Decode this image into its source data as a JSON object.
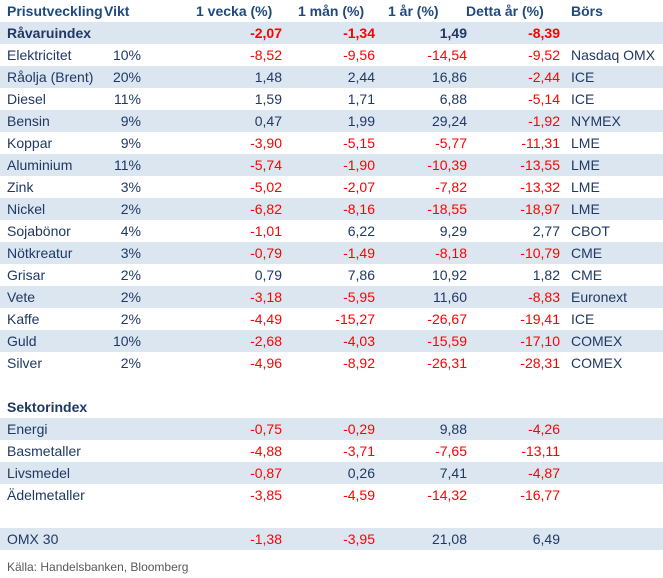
{
  "headers": {
    "name": "Prisutveckling",
    "weight": "Vikt",
    "week": "1 vecka (%)",
    "month": "1 mån (%)",
    "year": "1 år (%)",
    "ytd": "Detta år (%)",
    "exchange": "Börs"
  },
  "index_row": {
    "name": "Råvaruindex",
    "weight": "",
    "week": "-2,07",
    "month": "-1,34",
    "year": "1,49",
    "ytd": "-8,39",
    "exchange": ""
  },
  "commodities": [
    {
      "name": "Elektricitet",
      "weight": "10%",
      "week": "-8,52",
      "month": "-9,56",
      "year": "-14,54",
      "ytd": "-9,52",
      "exchange": "Nasdaq OMX"
    },
    {
      "name": "Råolja (Brent)",
      "weight": "20%",
      "week": "1,48",
      "month": "2,44",
      "year": "16,86",
      "ytd": "-2,44",
      "exchange": "ICE"
    },
    {
      "name": "Diesel",
      "weight": "11%",
      "week": "1,59",
      "month": "1,71",
      "year": "6,88",
      "ytd": "-5,14",
      "exchange": "ICE"
    },
    {
      "name": "Bensin",
      "weight": "9%",
      "week": "0,47",
      "month": "1,99",
      "year": "29,24",
      "ytd": "-1,92",
      "exchange": "NYMEX"
    },
    {
      "name": "Koppar",
      "weight": "9%",
      "week": "-3,90",
      "month": "-5,15",
      "year": "-5,77",
      "ytd": "-11,31",
      "exchange": "LME"
    },
    {
      "name": "Aluminium",
      "weight": "11%",
      "week": "-5,74",
      "month": "-1,90",
      "year": "-10,39",
      "ytd": "-13,55",
      "exchange": "LME"
    },
    {
      "name": "Zink",
      "weight": "3%",
      "week": "-5,02",
      "month": "-2,07",
      "year": "-7,82",
      "ytd": "-13,32",
      "exchange": "LME"
    },
    {
      "name": "Nickel",
      "weight": "2%",
      "week": "-6,82",
      "month": "-8,16",
      "year": "-18,55",
      "ytd": "-18,97",
      "exchange": "LME"
    },
    {
      "name": "Sojabönor",
      "weight": "4%",
      "week": "-1,01",
      "month": "6,22",
      "year": "9,29",
      "ytd": "2,77",
      "exchange": "CBOT"
    },
    {
      "name": "Nötkreatur",
      "weight": "3%",
      "week": "-0,79",
      "month": "-1,49",
      "year": "-8,18",
      "ytd": "-10,79",
      "exchange": "CME"
    },
    {
      "name": "Grisar",
      "weight": "2%",
      "week": "0,79",
      "month": "7,86",
      "year": "10,92",
      "ytd": "1,82",
      "exchange": "CME"
    },
    {
      "name": "Vete",
      "weight": "2%",
      "week": "-3,18",
      "month": "-5,95",
      "year": "11,60",
      "ytd": "-8,83",
      "exchange": "Euronext"
    },
    {
      "name": "Kaffe",
      "weight": "2%",
      "week": "-4,49",
      "month": "-15,27",
      "year": "-26,67",
      "ytd": "-19,41",
      "exchange": "ICE"
    },
    {
      "name": "Guld",
      "weight": "10%",
      "week": "-2,68",
      "month": "-4,03",
      "year": "-15,59",
      "ytd": "-17,10",
      "exchange": "COMEX"
    },
    {
      "name": "Silver",
      "weight": "2%",
      "week": "-4,96",
      "month": "-8,92",
      "year": "-26,31",
      "ytd": "-28,31",
      "exchange": "COMEX"
    }
  ],
  "sector_title": "Sektorindex",
  "sectors": [
    {
      "name": "Energi",
      "week": "-0,75",
      "month": "-0,29",
      "year": "9,88",
      "ytd": "-4,26"
    },
    {
      "name": "Basmetaller",
      "week": "-4,88",
      "month": "-3,71",
      "year": "-7,65",
      "ytd": "-13,11"
    },
    {
      "name": "Livsmedel",
      "week": "-0,87",
      "month": "0,26",
      "year": "7,41",
      "ytd": "-4,87"
    },
    {
      "name": "Ädelmetaller",
      "week": "-3,85",
      "month": "-4,59",
      "year": "-14,32",
      "ytd": "-16,77"
    }
  ],
  "omx": {
    "name": "OMX 30",
    "week": "-1,38",
    "month": "-3,95",
    "year": "21,08",
    "ytd": "6,49"
  },
  "source": "Källa: Handelsbanken, Bloomberg"
}
